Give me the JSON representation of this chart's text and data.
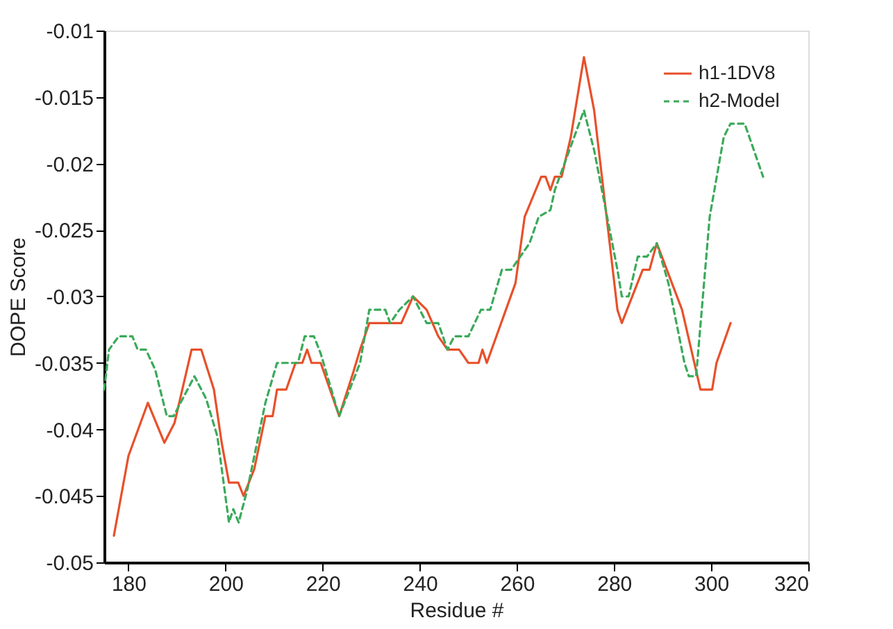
{
  "chart_data": {
    "type": "line",
    "xlabel": "Residue #",
    "ylabel": "DOPE Score",
    "xlim": [
      175,
      320
    ],
    "xticks": [
      180,
      200,
      220,
      240,
      260,
      280,
      300,
      320
    ],
    "ylim": [
      -0.05,
      -0.01
    ],
    "yticks": [
      -0.05,
      -0.045,
      -0.04,
      -0.035,
      -0.03,
      -0.025,
      -0.02,
      -0.015,
      -0.01
    ],
    "grid": false,
    "legend": "top right",
    "marker": "none",
    "series": [
      {
        "name": "h1-1DV8",
        "color": "#e8502a",
        "line_style": "solid",
        "x": [
          177,
          180,
          184,
          187.4,
          189.5,
          193,
          195,
          197.6,
          199.2,
          200.7,
          202.6,
          203.7,
          205.9,
          208.2,
          209.7,
          210.6,
          212.5,
          214.4,
          215.8,
          216.8,
          217.7,
          219.6,
          223.4,
          226.3,
          227.7,
          229.6,
          236.2,
          238.6,
          241.4,
          243.8,
          245.7,
          248.1,
          250,
          252.1,
          252.9,
          253.8,
          259.7,
          261.6,
          265,
          265.9,
          266.9,
          267.8,
          269.2,
          271.1,
          273.8,
          275.9,
          280.7,
          281.6,
          285.9,
          287.3,
          288.8,
          294,
          297.8,
          300.2,
          301.1,
          304
        ],
        "values": [
          -0.048,
          -0.042,
          -0.038,
          -0.041,
          -0.0395,
          -0.034,
          -0.034,
          -0.037,
          -0.041,
          -0.044,
          -0.044,
          -0.045,
          -0.043,
          -0.039,
          -0.039,
          -0.037,
          -0.037,
          -0.035,
          -0.035,
          -0.034,
          -0.035,
          -0.035,
          -0.039,
          -0.0357,
          -0.034,
          -0.032,
          -0.032,
          -0.03,
          -0.031,
          -0.033,
          -0.034,
          -0.034,
          -0.035,
          -0.035,
          -0.034,
          -0.035,
          -0.029,
          -0.024,
          -0.021,
          -0.021,
          -0.022,
          -0.021,
          -0.021,
          -0.018,
          -0.012,
          -0.016,
          -0.031,
          -0.032,
          -0.028,
          -0.028,
          -0.026,
          -0.031,
          -0.037,
          -0.037,
          -0.035,
          -0.032
        ]
      },
      {
        "name": "h2-Model",
        "color": "#3aaa5a",
        "line_style": "dashed",
        "x": [
          175,
          176,
          178,
          180.8,
          181.9,
          183.6,
          185.5,
          187.9,
          189.3,
          193.6,
          196,
          198.3,
          200.7,
          201.6,
          202.7,
          204.5,
          208.2,
          210.6,
          214.9,
          216.3,
          218.2,
          219.6,
          223.4,
          227.7,
          229.6,
          232.9,
          233.9,
          235.8,
          238.6,
          241.4,
          243.8,
          245.7,
          247.1,
          250,
          252.6,
          254.5,
          256.9,
          258.8,
          262.6,
          264.5,
          266.9,
          267.8,
          273.8,
          275.9,
          280.7,
          281.6,
          283,
          284.9,
          286.8,
          288.8,
          291.2,
          294.5,
          295.4,
          296.9,
          299.7,
          302.6,
          304,
          306.9,
          310.7
        ],
        "values": [
          -0.037,
          -0.034,
          -0.033,
          -0.033,
          -0.034,
          -0.034,
          -0.0355,
          -0.039,
          -0.039,
          -0.036,
          -0.0377,
          -0.0405,
          -0.047,
          -0.046,
          -0.047,
          -0.0445,
          -0.038,
          -0.035,
          -0.035,
          -0.033,
          -0.033,
          -0.0343,
          -0.039,
          -0.035,
          -0.031,
          -0.031,
          -0.032,
          -0.031,
          -0.03,
          -0.032,
          -0.032,
          -0.034,
          -0.033,
          -0.033,
          -0.031,
          -0.031,
          -0.028,
          -0.028,
          -0.026,
          -0.024,
          -0.0235,
          -0.022,
          -0.016,
          -0.019,
          -0.028,
          -0.03,
          -0.03,
          -0.027,
          -0.027,
          -0.026,
          -0.029,
          -0.035,
          -0.036,
          -0.036,
          -0.024,
          -0.018,
          -0.017,
          -0.017,
          -0.021
        ]
      }
    ]
  }
}
